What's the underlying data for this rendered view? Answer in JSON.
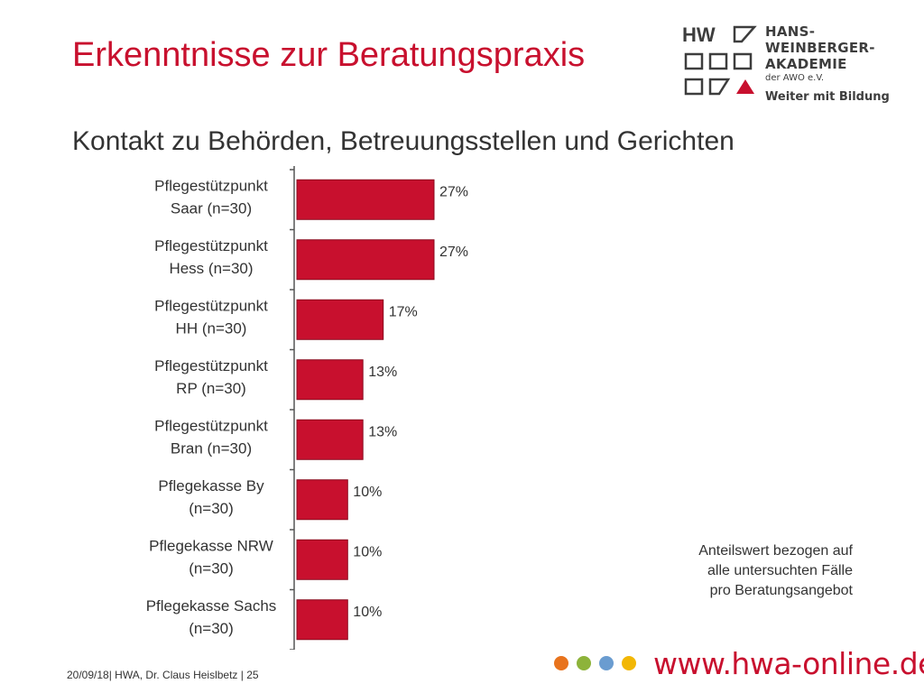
{
  "header": {
    "title": "Erkenntnisse zur Beratungspraxis",
    "subtitle": "Kontakt zu Behörden, Betreuungsstellen und Gerichten"
  },
  "logo": {
    "line1": "HANS-",
    "line2": "WEINBERGER-",
    "line3": "AKADEMIE",
    "line4": "der AWO e.V.",
    "tagline": "Weiter mit Bildung",
    "letters": "HW"
  },
  "chart_data": {
    "type": "bar",
    "orientation": "horizontal",
    "categories": [
      [
        "Pflegestützpunkt",
        "Saar (n=30)"
      ],
      [
        "Pflegestützpunkt",
        "Hess (n=30)"
      ],
      [
        "Pflegestützpunkt",
        "HH (n=30)"
      ],
      [
        "Pflegestützpunkt",
        "RP (n=30)"
      ],
      [
        "Pflegestützpunkt",
        "Bran (n=30)"
      ],
      [
        "Pflegekasse By",
        "(n=30)"
      ],
      [
        "Pflegekasse NRW",
        "(n=30)"
      ],
      [
        "Pflegekasse Sachs",
        "(n=30)"
      ]
    ],
    "values": [
      27,
      27,
      17,
      13,
      13,
      10,
      10,
      10
    ],
    "value_labels": [
      "27%",
      "27%",
      "17%",
      "13%",
      "13%",
      "10%",
      "10%",
      "10%"
    ],
    "xlim": [
      0,
      100
    ],
    "grid": false,
    "bar_color": "#c8102e"
  },
  "note": {
    "lines": [
      "Anteilswert bezogen auf",
      "alle untersuchten Fälle",
      "pro Beratungsangebot"
    ]
  },
  "footer": {
    "text": "20/09/18| HWA, Dr. Claus Heislbetz | 25",
    "url": "www.hwa-online.de",
    "dot_colors": [
      "#e8731d",
      "#8db33a",
      "#6a9cd0",
      "#f2b705"
    ]
  },
  "colors": {
    "accent": "#c8102e",
    "text": "#333333"
  }
}
